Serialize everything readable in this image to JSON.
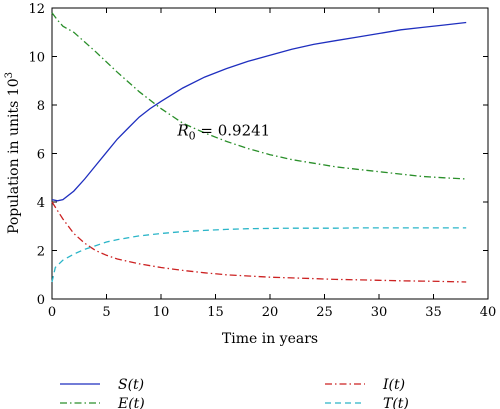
{
  "chart_data": {
    "type": "line",
    "xlabel": "Time in years",
    "ylabel_main": "Population in units 10",
    "ylabel_sup": "3",
    "xlim": [
      0,
      40
    ],
    "ylim": [
      0,
      12
    ],
    "x_ticks": [
      0,
      5,
      10,
      15,
      20,
      25,
      30,
      35,
      40
    ],
    "y_ticks": [
      0,
      2,
      4,
      6,
      8,
      10,
      12
    ],
    "grid": false,
    "legend_position": "bottom",
    "annotation": {
      "symbol": "R",
      "subscript": "0",
      "text": " = 0.9241",
      "x": 11.5,
      "y": 6.75
    },
    "series": [
      {
        "name": "S(t)",
        "color": "#1f2fbf",
        "dash": "solid",
        "x": [
          0,
          0.5,
          1,
          2,
          3,
          4,
          5,
          6,
          7,
          8,
          9,
          10,
          12,
          14,
          16,
          18,
          20,
          22,
          24,
          26,
          28,
          30,
          32,
          34,
          36,
          38
        ],
        "y": [
          4.1,
          4.05,
          4.1,
          4.45,
          4.95,
          5.5,
          6.05,
          6.6,
          7.05,
          7.5,
          7.85,
          8.15,
          8.7,
          9.15,
          9.5,
          9.8,
          10.05,
          10.3,
          10.5,
          10.65,
          10.8,
          10.95,
          11.1,
          11.2,
          11.3,
          11.4
        ]
      },
      {
        "name": "E(t)",
        "color": "#2a8f2a",
        "dash": "dashdot",
        "x": [
          0,
          0.5,
          1,
          2,
          4,
          6,
          8,
          10,
          12,
          14,
          16,
          18,
          20,
          22,
          24,
          26,
          28,
          30,
          32,
          34,
          36,
          38
        ],
        "y": [
          11.8,
          11.5,
          11.25,
          11.0,
          10.2,
          9.35,
          8.55,
          7.85,
          7.25,
          6.85,
          6.5,
          6.2,
          5.95,
          5.75,
          5.6,
          5.45,
          5.35,
          5.25,
          5.15,
          5.05,
          5.0,
          4.95
        ]
      },
      {
        "name": "I(t)",
        "color": "#cc2222",
        "dash": "dashdot",
        "x": [
          0,
          1,
          2,
          3,
          4,
          5,
          6,
          8,
          10,
          12,
          14,
          16,
          18,
          20,
          22,
          24,
          26,
          28,
          30,
          32,
          34,
          36,
          38
        ],
        "y": [
          4.0,
          3.3,
          2.7,
          2.3,
          2.0,
          1.8,
          1.65,
          1.45,
          1.3,
          1.18,
          1.08,
          1.0,
          0.95,
          0.9,
          0.87,
          0.84,
          0.81,
          0.79,
          0.77,
          0.75,
          0.74,
          0.72,
          0.7
        ]
      },
      {
        "name": "T(t)",
        "color": "#2bb5c8",
        "dash": "dashed",
        "x": [
          0,
          0.3,
          1,
          2,
          3,
          4,
          5,
          6,
          8,
          10,
          12,
          14,
          16,
          18,
          20,
          22,
          24,
          26,
          28,
          30,
          32,
          34,
          36,
          38
        ],
        "y": [
          0.7,
          1.3,
          1.6,
          1.85,
          2.05,
          2.2,
          2.35,
          2.45,
          2.6,
          2.7,
          2.78,
          2.83,
          2.87,
          2.9,
          2.91,
          2.92,
          2.92,
          2.92,
          2.93,
          2.93,
          2.93,
          2.93,
          2.93,
          2.93
        ]
      }
    ]
  }
}
